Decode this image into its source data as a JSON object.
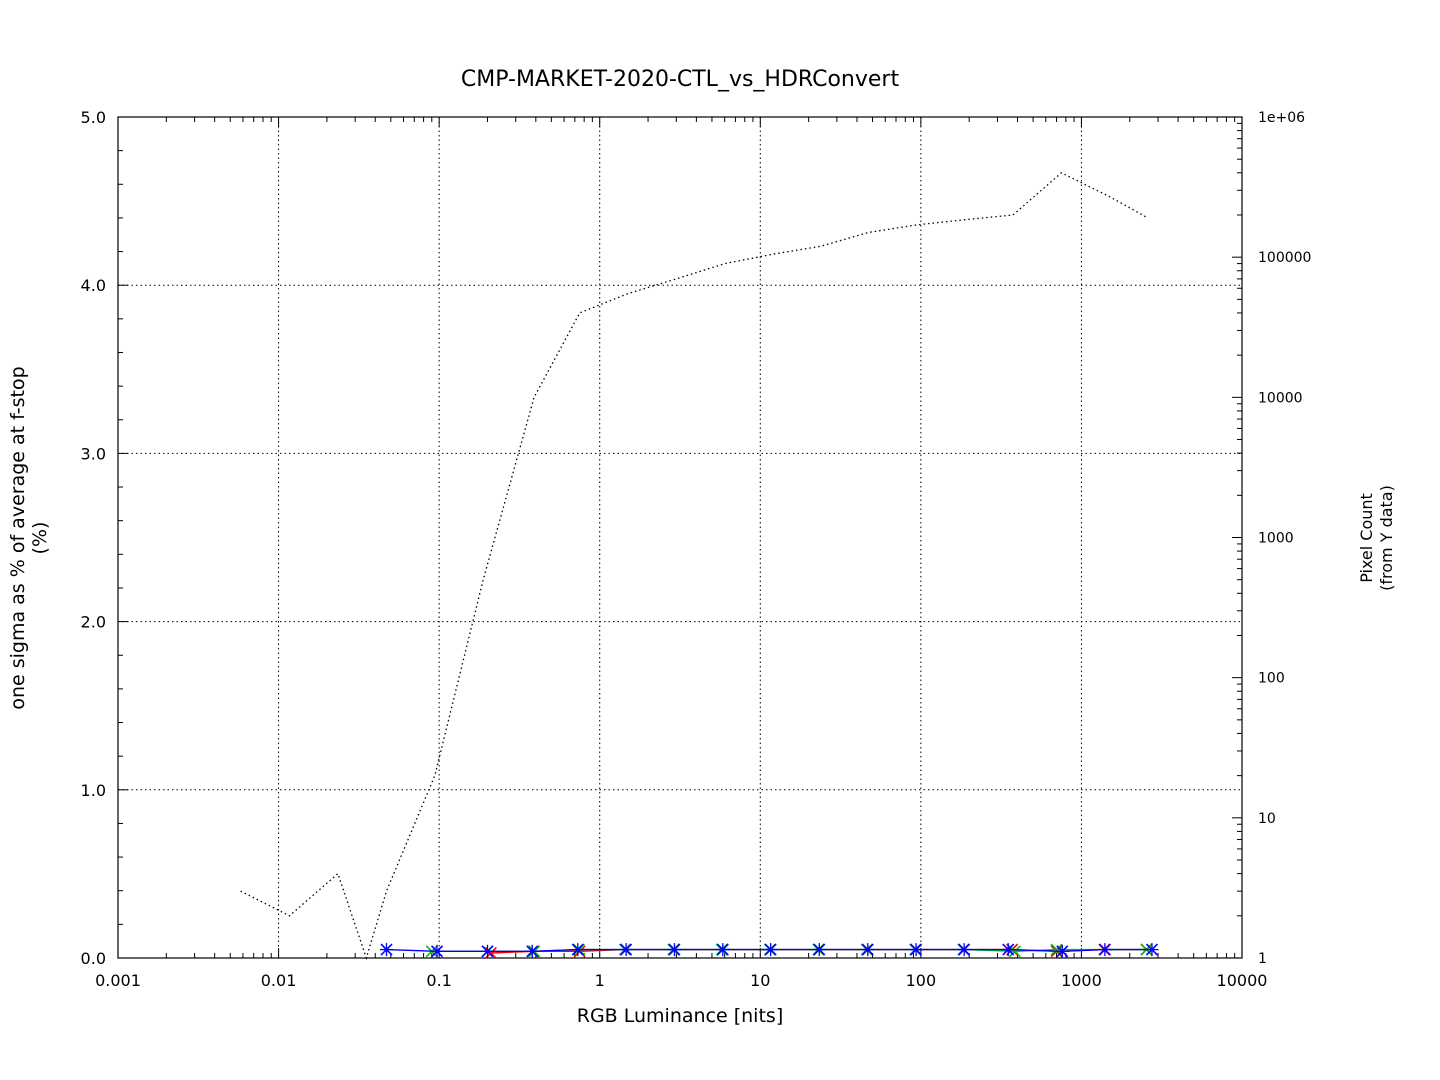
{
  "chart_data": {
    "type": "line",
    "title": "CMP-MARKET-2020-CTL_vs_HDRConvert",
    "xlabel": "RGB Luminance [nits]",
    "ylabel": "one sigma as % of average at f-stop",
    "ylabel_unit": "(%)",
    "y2label": "Pixel Count",
    "y2label_sub": "(from Y data)",
    "x_scale": "log",
    "xlim": [
      0.001,
      10000
    ],
    "ylim": [
      0,
      5
    ],
    "y2_scale": "log",
    "y2lim": [
      1,
      1000000
    ],
    "x_ticks": [
      "0.001",
      "0.01",
      "0.1",
      "1",
      "10",
      "100",
      "1000",
      "10000"
    ],
    "x_tick_values": [
      0.001,
      0.01,
      0.1,
      1,
      10,
      100,
      1000,
      10000
    ],
    "y_ticks": [
      "0.0",
      "1.0",
      "2.0",
      "3.0",
      "4.0",
      "5.0"
    ],
    "y_tick_values": [
      0,
      1,
      2,
      3,
      4,
      5
    ],
    "y2_ticks": [
      "1",
      "10",
      "100",
      "1000",
      "10000",
      "100000",
      "1e+06"
    ],
    "y2_tick_values": [
      1,
      10,
      100,
      1000,
      10000,
      100000,
      1000000
    ],
    "grid": true,
    "series": [
      {
        "axis": "y2",
        "style": "dotted",
        "color": "#000000",
        "x": [
          0.0058,
          0.0117,
          0.0234,
          0.0352,
          0.047,
          0.094,
          0.188,
          0.39,
          0.75,
          1.5,
          3,
          6,
          12,
          24,
          47,
          94,
          188,
          375,
          750,
          1500,
          2600
        ],
        "y": [
          3,
          2,
          4,
          1,
          3,
          20,
          500,
          10000,
          40000,
          55000,
          70000,
          90000,
          105000,
          120000,
          150000,
          170000,
          185000,
          200000,
          400000,
          270000,
          190000
        ]
      },
      {
        "axis": "y",
        "style": "line-marker",
        "marker": "x",
        "color": "#ff0000",
        "x": [
          0.21,
          0.39,
          0.75,
          1.44,
          2.89,
          5.78,
          11.5,
          23.1,
          46.2,
          92.5,
          185,
          370,
          700,
          1390,
          2540
        ],
        "y": [
          0.03,
          0.04,
          0.04,
          0.05,
          0.05,
          0.05,
          0.05,
          0.05,
          0.05,
          0.05,
          0.05,
          0.05,
          0.04,
          0.05,
          0.05
        ]
      },
      {
        "axis": "y",
        "style": "line-marker",
        "marker": "x",
        "color": "#00c000",
        "x": [
          0.09,
          0.2,
          0.39,
          0.74,
          1.44,
          2.88,
          5.76,
          11.5,
          23,
          46.1,
          92.2,
          184,
          385,
          700,
          2540
        ],
        "y": [
          0.04,
          0.04,
          0.04,
          0.05,
          0.05,
          0.05,
          0.05,
          0.05,
          0.05,
          0.05,
          0.05,
          0.05,
          0.04,
          0.05,
          0.05
        ]
      },
      {
        "axis": "y",
        "style": "line-marker",
        "marker": "x",
        "color": "#0000ff",
        "x": [
          0.047,
          0.097,
          0.2,
          0.38,
          0.73,
          1.46,
          2.92,
          5.84,
          11.6,
          23.3,
          46.7,
          93.4,
          186,
          350,
          760,
          1400,
          2750
        ],
        "y": [
          0.05,
          0.04,
          0.04,
          0.04,
          0.05,
          0.05,
          0.05,
          0.05,
          0.05,
          0.05,
          0.05,
          0.05,
          0.05,
          0.05,
          0.04,
          0.05,
          0.05
        ]
      }
    ]
  }
}
